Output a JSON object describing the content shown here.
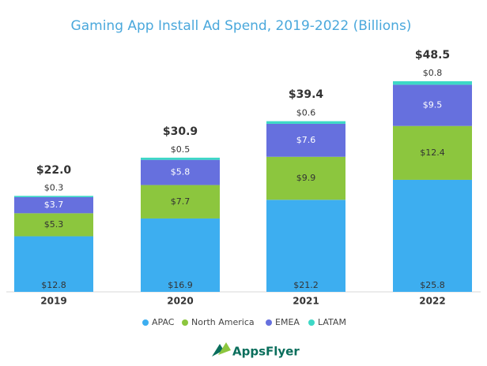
{
  "chart_data": {
    "type": "stacked-bar",
    "title": "Gaming App Install Ad Spend, 2019-2022 (Billions)",
    "categories": [
      "2019",
      "2020",
      "2021",
      "2022"
    ],
    "series": [
      {
        "name": "APAC",
        "color": "#3daef0",
        "values": [
          12.8,
          16.9,
          21.2,
          25.8
        ],
        "value_labels": [
          "$12.8",
          "$16.9",
          "$21.2",
          "$25.8"
        ]
      },
      {
        "name": "North America",
        "color": "#8cc63e",
        "values": [
          5.3,
          7.7,
          9.9,
          12.4
        ],
        "value_labels": [
          "$5.3",
          "$7.7",
          "$9.9",
          "$12.4"
        ]
      },
      {
        "name": "EMEA",
        "color": "#6670de",
        "values": [
          3.7,
          5.8,
          7.6,
          9.5
        ],
        "value_labels": [
          "$3.7",
          "$5.8",
          "$7.6",
          "$9.5"
        ]
      },
      {
        "name": "LATAM",
        "color": "#3dd8c6",
        "values": [
          0.3,
          0.5,
          0.6,
          0.8
        ],
        "value_labels": [
          "$0.3",
          "$0.5",
          "$0.6",
          "$0.8"
        ]
      }
    ],
    "totals": [
      22.0,
      30.9,
      39.4,
      48.5
    ],
    "total_labels": [
      "$22.0",
      "$30.9",
      "$39.4",
      "$48.5"
    ]
  },
  "logo": "AppsFlyer"
}
